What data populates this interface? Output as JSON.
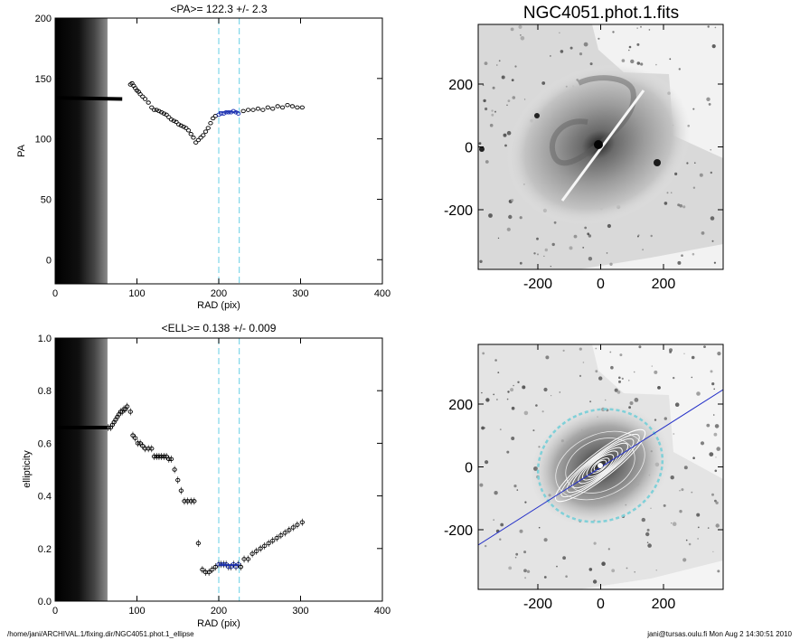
{
  "footer": {
    "left": "/home/jani/ARCHIVAL.1/fixing.dir/NGC4051.phot.1_ellipse",
    "right": "jani@tursas.oulu.fi  Mon Aug  2 14:30:51 2010"
  },
  "colors": {
    "ink": "#000000",
    "guide_line": "#7fd7ea",
    "mean_fit": "#1a2fb0",
    "pa_axis_line": "#2430c8",
    "ellipse_outer": "#7fd0d8",
    "galaxy_halo": "#9a9a9a",
    "galaxy_core": "#3c3c3c"
  },
  "chart_data": [
    {
      "type": "scatter",
      "title": "<PA>= 122.3 +/-   2.3",
      "xlabel": "RAD (pix)",
      "ylabel": "PA",
      "xlim": [
        0,
        400
      ],
      "ylim": [
        -20,
        200
      ],
      "xticks": [
        "0",
        "100",
        "200",
        "300",
        "400"
      ],
      "yticks": [
        "0",
        "50",
        "100",
        "150",
        "200"
      ],
      "shaded_inner_region_rad": [
        0,
        64
      ],
      "vertical_guides_rad": [
        200,
        225
      ],
      "mean_value": 122.3,
      "mean_fit_range_rad": [
        200,
        225
      ],
      "inner_track": {
        "x0": 0,
        "x1": 82,
        "y0": 134,
        "y1": 133
      },
      "x": [
        92,
        94,
        96,
        98,
        100,
        102,
        104,
        107,
        110,
        114,
        118,
        121,
        124,
        127,
        130,
        133,
        136,
        139,
        142,
        145,
        148,
        151,
        154,
        157,
        160,
        163,
        166,
        169,
        172,
        175,
        178,
        181,
        184,
        187,
        190,
        193,
        196,
        200,
        203,
        206,
        209,
        212,
        215,
        218,
        221,
        224,
        230,
        236,
        242,
        248,
        254,
        260,
        266,
        272,
        278,
        284,
        290,
        296,
        302
      ],
      "y": [
        145,
        146,
        144,
        142,
        140,
        139,
        137,
        135,
        133,
        130,
        126,
        124,
        124,
        123,
        122,
        121,
        120,
        118,
        116,
        115,
        114,
        112,
        111,
        110,
        109,
        107,
        104,
        101,
        97,
        99,
        101,
        103,
        106,
        109,
        113,
        117,
        119,
        120,
        121,
        121,
        122,
        122,
        122,
        123,
        122,
        121,
        123,
        124,
        124,
        125,
        124,
        126,
        125,
        127,
        126,
        128,
        127,
        126,
        126
      ]
    },
    {
      "type": "scatter",
      "title": "<ELL>= 0.138 +/-  0.009",
      "xlabel": "RAD (pix)",
      "ylabel": "ellipticity",
      "xlim": [
        0,
        400
      ],
      "ylim": [
        0,
        1
      ],
      "xticks": [
        "0",
        "100",
        "200",
        "300",
        "400"
      ],
      "yticks": [
        "0.0",
        "0.2",
        "0.4",
        "0.6",
        "0.8",
        "1.0"
      ],
      "shaded_inner_region_rad": [
        0,
        64
      ],
      "vertical_guides_rad": [
        200,
        225
      ],
      "mean_value": 0.138,
      "mean_fit_range_rad": [
        200,
        225
      ],
      "inner_track": {
        "x0": 0,
        "x1": 64,
        "y0": 0.66,
        "y1": 0.66
      },
      "x": [
        65,
        68,
        70,
        72,
        74,
        76,
        78,
        80,
        82,
        84,
        86,
        88,
        92,
        95,
        98,
        101,
        104,
        107,
        110,
        114,
        118,
        121,
        124,
        127,
        130,
        133,
        136,
        139,
        142,
        146,
        150,
        154,
        158,
        162,
        166,
        170,
        175,
        180,
        184,
        188,
        192,
        196,
        200,
        203,
        206,
        209,
        212,
        215,
        218,
        221,
        224,
        227,
        231,
        236,
        241,
        246,
        251,
        256,
        261,
        266,
        271,
        276,
        281,
        286,
        291,
        296,
        302
      ],
      "y": [
        0.66,
        0.66,
        0.67,
        0.68,
        0.69,
        0.7,
        0.71,
        0.72,
        0.72,
        0.73,
        0.73,
        0.74,
        0.72,
        0.63,
        0.62,
        0.6,
        0.6,
        0.59,
        0.58,
        0.58,
        0.58,
        0.55,
        0.55,
        0.55,
        0.55,
        0.55,
        0.55,
        0.54,
        0.54,
        0.5,
        0.46,
        0.42,
        0.38,
        0.38,
        0.38,
        0.38,
        0.22,
        0.12,
        0.11,
        0.11,
        0.12,
        0.13,
        0.14,
        0.14,
        0.14,
        0.14,
        0.13,
        0.13,
        0.14,
        0.13,
        0.14,
        0.13,
        0.16,
        0.16,
        0.18,
        0.19,
        0.2,
        0.21,
        0.22,
        0.23,
        0.24,
        0.25,
        0.26,
        0.27,
        0.28,
        0.29,
        0.3
      ]
    },
    {
      "type": "heatmap",
      "title": "NGC4051.phot.1.fits",
      "xlim": [
        -390,
        390
      ],
      "ylim": [
        -390,
        390
      ],
      "xticks": [
        "-200",
        "0",
        "200"
      ],
      "yticks": [
        "-200",
        "0",
        "200"
      ],
      "image": "galaxy"
    },
    {
      "type": "heatmap",
      "title": "",
      "xlim": [
        -390,
        390
      ],
      "ylim": [
        -390,
        390
      ],
      "xticks": [
        "-200",
        "0",
        "200"
      ],
      "yticks": [
        "-200",
        "0",
        "200"
      ],
      "image": "galaxy-with-fitted-isophotes",
      "overlay_ellipse_semi_axes_pix": [
        200,
        172
      ],
      "overlay_pa_line_deg": 122.3
    }
  ]
}
